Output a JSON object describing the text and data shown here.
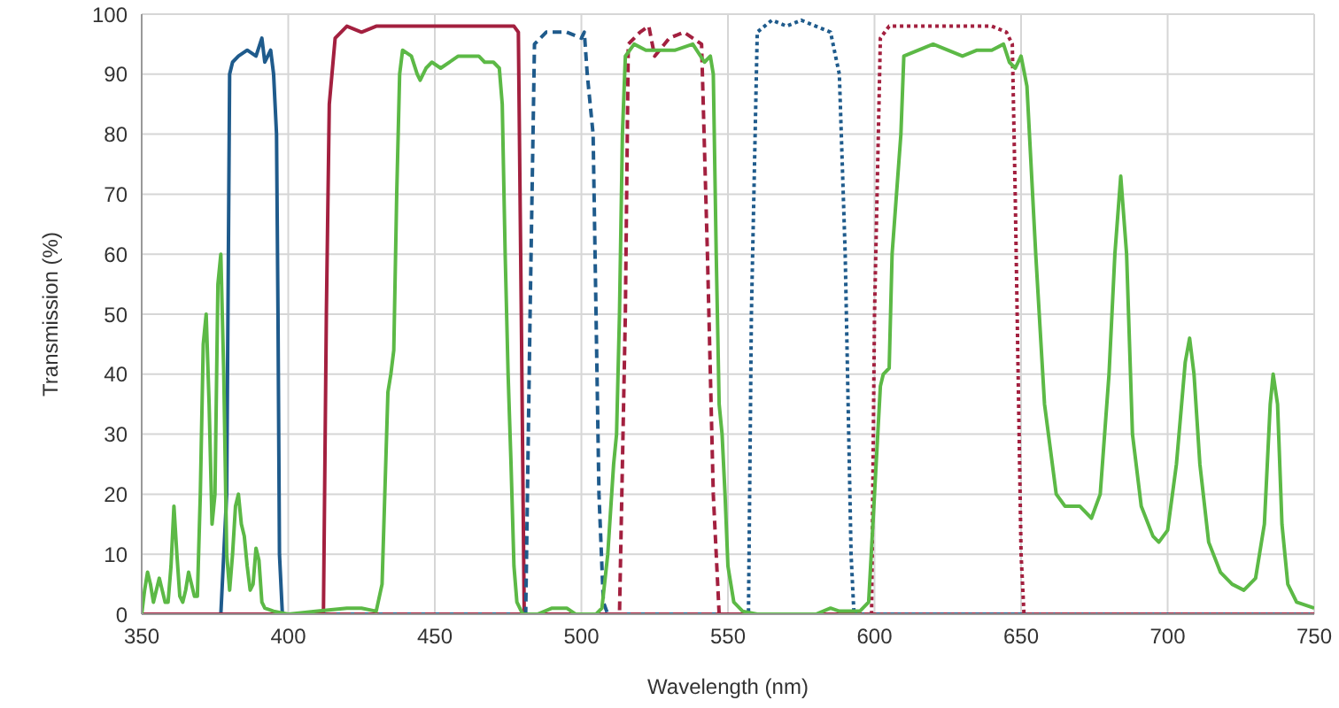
{
  "chart_data": {
    "type": "line",
    "xlabel": "Wavelength (nm)",
    "ylabel": "Transmission (%)",
    "xlim": [
      350,
      750
    ],
    "xticks": [
      350,
      400,
      450,
      500,
      550,
      600,
      650,
      700,
      750
    ],
    "ylim": [
      0,
      100
    ],
    "yticks": [
      0,
      10,
      20,
      30,
      40,
      50,
      60,
      70,
      80,
      90,
      100
    ],
    "grid": true,
    "legend": false,
    "marker": "none",
    "series": [
      {
        "color": "#1f5b8c",
        "line_style": "solid",
        "x": [
          350,
          377,
          379,
          380,
          381,
          383,
          386,
          389,
          391,
          392,
          394,
          395,
          396,
          396.5,
          397,
          398,
          750
        ],
        "values": [
          0,
          0,
          20,
          90,
          92,
          93,
          94,
          93,
          96,
          92,
          94,
          90,
          80,
          50,
          10,
          0,
          0
        ]
      },
      {
        "color": "#a3203f",
        "line_style": "solid",
        "x": [
          350,
          412,
          413,
          414,
          416,
          420,
          425,
          430,
          440,
          450,
          460,
          470,
          477,
          478.5,
          479.5,
          480.5,
          750
        ],
        "values": [
          0,
          0,
          50,
          85,
          96,
          98,
          97,
          98,
          98,
          98,
          98,
          98,
          98,
          97,
          50,
          0,
          0
        ]
      },
      {
        "color": "#1f5b8c",
        "line_style": "dashed",
        "x": [
          350,
          481,
          482.5,
          484,
          488,
          495,
          500,
          501,
          502,
          504,
          505,
          506,
          507.5,
          509,
          750
        ],
        "values": [
          0,
          0,
          50,
          95,
          97,
          97,
          96,
          97,
          90,
          80,
          50,
          20,
          2,
          0,
          0
        ]
      },
      {
        "color": "#a3203f",
        "line_style": "dashed",
        "x": [
          350,
          513,
          515,
          516,
          520,
          523,
          525,
          530,
          535,
          538,
          541,
          543,
          545,
          547,
          750
        ],
        "values": [
          0,
          0,
          50,
          95,
          97,
          98,
          93,
          96,
          97,
          96,
          95,
          60,
          20,
          0,
          0
        ]
      },
      {
        "color": "#1f5b8c",
        "line_style": "dotted",
        "x": [
          350,
          557,
          558,
          560,
          565,
          570,
          575,
          580,
          585,
          588,
          590,
          592,
          593,
          750
        ],
        "values": [
          0,
          0,
          50,
          97,
          99,
          98,
          99,
          98,
          97,
          90,
          60,
          10,
          0,
          0
        ]
      },
      {
        "color": "#a3203f",
        "line_style": "dotted",
        "x": [
          350,
          599,
          600,
          602,
          605,
          610,
          620,
          630,
          640,
          645,
          647,
          648,
          650,
          651,
          750
        ],
        "values": [
          0,
          0,
          50,
          96,
          98,
          98,
          98,
          98,
          98,
          97,
          95,
          70,
          10,
          0,
          0
        ]
      },
      {
        "color": "#5cb946",
        "line_style": "solid",
        "x": [
          350,
          351,
          352,
          353,
          354,
          355,
          356,
          357,
          358,
          359,
          360,
          361,
          362,
          363,
          364,
          365,
          366,
          367,
          368,
          369,
          370,
          371,
          372,
          373,
          374,
          375,
          376,
          377,
          378,
          379,
          380,
          381,
          382,
          383,
          384,
          385,
          386,
          387,
          388,
          389,
          390,
          391,
          392,
          395,
          400,
          410,
          420,
          425,
          430,
          432,
          434,
          435,
          436,
          437,
          438,
          439,
          442,
          444,
          445,
          447,
          449,
          452,
          458,
          465,
          467,
          470,
          472,
          473,
          474,
          475,
          476,
          477,
          478,
          480,
          485,
          490,
          495,
          498,
          505,
          507,
          509,
          511,
          512,
          513,
          514,
          515,
          518,
          522,
          526,
          532,
          538,
          542,
          544,
          545,
          546,
          547,
          548,
          549,
          550,
          552,
          555,
          560,
          580,
          585,
          588,
          595,
          598,
          600,
          602,
          603,
          605,
          606,
          609,
          610,
          615,
          620,
          625,
          630,
          635,
          640,
          644,
          646,
          648,
          650,
          652,
          655,
          658,
          662,
          665,
          670,
          674,
          677,
          680,
          682,
          684,
          686,
          688,
          691,
          695,
          697,
          700,
          703,
          706,
          707.5,
          709,
          711,
          714,
          718,
          722,
          726,
          730,
          733,
          735,
          736,
          737.5,
          739,
          741,
          744,
          750
        ],
        "values": [
          0,
          4,
          7,
          5,
          2,
          4,
          6,
          4,
          2,
          2,
          8,
          18,
          10,
          3,
          2,
          4,
          7,
          5,
          3,
          3,
          20,
          45,
          50,
          35,
          15,
          20,
          55,
          60,
          40,
          10,
          4,
          10,
          18,
          20,
          15,
          13,
          8,
          4,
          5,
          11,
          9,
          2,
          1,
          0.5,
          0,
          0.5,
          1,
          1,
          0.5,
          5,
          37,
          40,
          44,
          70,
          90,
          94,
          93,
          90,
          89,
          91,
          92,
          91,
          93,
          93,
          92,
          92,
          91,
          85,
          60,
          40,
          25,
          8,
          2,
          0,
          0,
          1,
          1,
          0,
          0,
          1,
          10,
          25,
          30,
          50,
          80,
          93,
          95,
          94,
          94,
          94,
          95,
          92,
          93,
          90,
          60,
          35,
          30,
          20,
          8,
          2,
          0.5,
          0,
          0,
          1,
          0.5,
          0.5,
          2,
          20,
          38,
          40,
          41,
          60,
          80,
          93,
          94,
          95,
          94,
          93,
          94,
          94,
          95,
          92,
          91,
          93,
          88,
          60,
          35,
          20,
          18,
          18,
          16,
          20,
          40,
          60,
          73,
          60,
          30,
          18,
          13,
          12,
          14,
          25,
          42,
          46,
          40,
          25,
          12,
          7,
          5,
          4,
          6,
          15,
          35,
          40,
          35,
          15,
          5,
          2,
          1
        ]
      }
    ]
  }
}
